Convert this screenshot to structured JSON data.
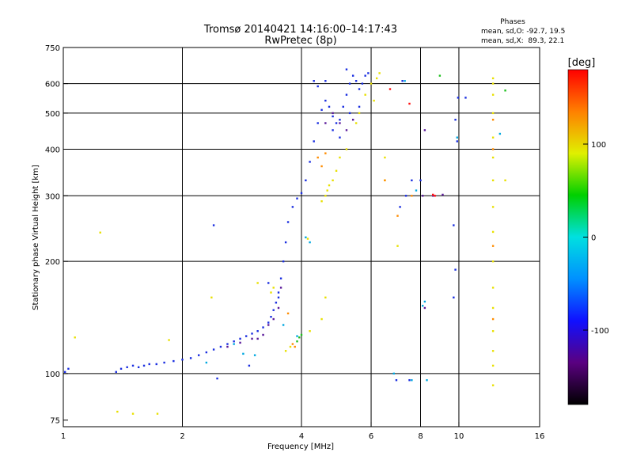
{
  "chart_data": {
    "type": "scatter",
    "title": "Tromsø 20140421 14:16:00–14:17:43",
    "subtitle": "RwPretec (8p)",
    "xlabel": "Frequency [MHz]",
    "ylabel": "Stationary phase Virtual Height [km]",
    "x_scale": "log",
    "y_scale": "log",
    "xlim": [
      1,
      16
    ],
    "ylim": [
      72,
      750
    ],
    "x_ticks": [
      1,
      2,
      4,
      6,
      8,
      10,
      16
    ],
    "y_ticks": [
      75,
      100,
      200,
      300,
      400,
      500,
      600,
      750
    ],
    "x_grid": [
      2,
      4,
      6,
      8,
      10
    ],
    "y_grid": [
      100,
      200,
      300,
      400,
      500,
      600
    ],
    "phase_stats": {
      "heading": "Phases",
      "line1": "mean, sd,O: -92.7, 19.5",
      "line2": "mean, sd,X:  89.3, 22.1"
    },
    "colorbar": {
      "label": "[deg]",
      "range": [
        -180,
        180
      ],
      "ticks": [
        100,
        0,
        -100
      ],
      "colormap": [
        "#000000",
        "#5a0080",
        "#1010ff",
        "#0090ff",
        "#00e0e0",
        "#00d000",
        "#e0f000",
        "#ff8000",
        "#ff0000"
      ]
    },
    "series": [
      {
        "color": "#1a2ee0",
        "points": [
          [
            1.01,
            101
          ],
          [
            1.03,
            103
          ],
          [
            1.36,
            101
          ],
          [
            1.4,
            103
          ],
          [
            1.45,
            104
          ],
          [
            1.5,
            105
          ],
          [
            1.55,
            104
          ],
          [
            1.6,
            105
          ],
          [
            1.65,
            106
          ],
          [
            1.72,
            106
          ],
          [
            1.8,
            107
          ],
          [
            1.9,
            108
          ],
          [
            2.0,
            109
          ],
          [
            2.1,
            110
          ],
          [
            2.2,
            112
          ],
          [
            2.3,
            114
          ],
          [
            2.4,
            116
          ],
          [
            2.5,
            118
          ],
          [
            2.6,
            120
          ],
          [
            2.7,
            122
          ],
          [
            2.8,
            124
          ],
          [
            2.9,
            126
          ],
          [
            3.0,
            128
          ],
          [
            3.1,
            130
          ],
          [
            3.2,
            133
          ],
          [
            3.3,
            137
          ],
          [
            3.35,
            142
          ],
          [
            3.4,
            148
          ],
          [
            3.45,
            155
          ],
          [
            3.5,
            165
          ],
          [
            3.55,
            180
          ],
          [
            3.6,
            200
          ],
          [
            3.65,
            225
          ],
          [
            3.7,
            255
          ],
          [
            3.8,
            280
          ],
          [
            3.9,
            295
          ],
          [
            4.0,
            305
          ],
          [
            4.1,
            330
          ],
          [
            4.2,
            370
          ],
          [
            4.3,
            420
          ],
          [
            4.4,
            470
          ],
          [
            4.5,
            510
          ],
          [
            4.6,
            540
          ],
          [
            4.7,
            520
          ],
          [
            4.8,
            490
          ],
          [
            4.9,
            470
          ],
          [
            5.0,
            480
          ],
          [
            5.1,
            520
          ],
          [
            5.2,
            560
          ],
          [
            5.3,
            600
          ],
          [
            5.4,
            630
          ],
          [
            5.5,
            610
          ],
          [
            5.6,
            580
          ],
          [
            5.7,
            600
          ],
          [
            5.8,
            630
          ],
          [
            5.9,
            640
          ],
          [
            4.8,
            450
          ],
          [
            5.0,
            430
          ],
          [
            5.3,
            500
          ],
          [
            4.4,
            590
          ],
          [
            4.6,
            610
          ],
          [
            5.6,
            520
          ],
          [
            2.45,
            97
          ],
          [
            2.4,
            250
          ],
          [
            2.95,
            105
          ],
          [
            3.3,
            175
          ],
          [
            3.5,
            160
          ],
          [
            4.3,
            610
          ],
          [
            5.2,
            655
          ],
          [
            6.95,
            96
          ],
          [
            7.5,
            96
          ],
          [
            7.1,
            280
          ],
          [
            7.35,
            300
          ],
          [
            8.0,
            330
          ],
          [
            9.8,
            480
          ],
          [
            9.9,
            420
          ],
          [
            9.7,
            250
          ],
          [
            9.8,
            190
          ],
          [
            9.7,
            160
          ],
          [
            7.6,
            330
          ],
          [
            9.95,
            550
          ],
          [
            10.4,
            550
          ],
          [
            7.2,
            610
          ]
        ]
      },
      {
        "color": "#5a1a9a",
        "points": [
          [
            2.6,
            118
          ],
          [
            2.8,
            121
          ],
          [
            3.0,
            124
          ],
          [
            3.1,
            124
          ],
          [
            3.2,
            127
          ],
          [
            3.3,
            135
          ],
          [
            3.4,
            140
          ],
          [
            3.5,
            150
          ],
          [
            3.55,
            170
          ],
          [
            4.6,
            470
          ],
          [
            4.8,
            500
          ],
          [
            5.0,
            470
          ],
          [
            5.2,
            450
          ],
          [
            5.4,
            480
          ],
          [
            8.1,
            300
          ],
          [
            8.2,
            450
          ],
          [
            8.2,
            150
          ],
          [
            9.1,
            302
          ],
          [
            8.6,
            300
          ]
        ]
      },
      {
        "color": "#00a8e0",
        "points": [
          [
            2.7,
            120
          ],
          [
            2.85,
            113
          ],
          [
            3.05,
            112
          ],
          [
            3.6,
            135
          ],
          [
            4.1,
            232
          ],
          [
            4.2,
            225
          ],
          [
            3.9,
            126
          ],
          [
            2.3,
            107
          ],
          [
            9.9,
            430
          ],
          [
            8.1,
            152
          ],
          [
            7.8,
            310
          ],
          [
            8.2,
            156
          ],
          [
            8.3,
            96
          ],
          [
            7.6,
            96
          ],
          [
            6.85,
            100
          ],
          [
            12.7,
            440
          ],
          [
            7.3,
            610
          ]
        ]
      },
      {
        "color": "#20c020",
        "points": [
          [
            3.95,
            125
          ],
          [
            4.0,
            127
          ],
          [
            3.9,
            122
          ],
          [
            8.95,
            630
          ],
          [
            13.1,
            575
          ]
        ]
      },
      {
        "color": "#e8e000",
        "points": [
          [
            1.07,
            125
          ],
          [
            1.24,
            239
          ],
          [
            1.37,
            79
          ],
          [
            1.5,
            78
          ],
          [
            1.73,
            78
          ],
          [
            1.85,
            123
          ],
          [
            2.37,
            160
          ],
          [
            3.1,
            175
          ],
          [
            3.35,
            165
          ],
          [
            3.4,
            170
          ],
          [
            3.65,
            115
          ],
          [
            3.75,
            118
          ],
          [
            4.15,
            230
          ],
          [
            4.5,
            290
          ],
          [
            4.6,
            300
          ],
          [
            4.65,
            310
          ],
          [
            4.7,
            320
          ],
          [
            4.8,
            330
          ],
          [
            4.9,
            350
          ],
          [
            5.0,
            380
          ],
          [
            5.2,
            400
          ],
          [
            5.5,
            470
          ],
          [
            5.6,
            500
          ],
          [
            5.8,
            560
          ],
          [
            6.0,
            600
          ],
          [
            6.2,
            620
          ],
          [
            6.3,
            640
          ],
          [
            6.1,
            540
          ],
          [
            6.5,
            330
          ],
          [
            6.5,
            380
          ],
          [
            4.6,
            160
          ],
          [
            4.5,
            140
          ],
          [
            4.2,
            130
          ],
          [
            12.2,
            620
          ],
          [
            12.2,
            600
          ],
          [
            12.2,
            560
          ],
          [
            12.2,
            500
          ],
          [
            12.2,
            430
          ],
          [
            12.2,
            380
          ],
          [
            12.2,
            330
          ],
          [
            12.2,
            280
          ],
          [
            12.2,
            240
          ],
          [
            12.2,
            200
          ],
          [
            12.2,
            170
          ],
          [
            12.2,
            150
          ],
          [
            12.2,
            130
          ],
          [
            12.2,
            115
          ],
          [
            12.2,
            105
          ],
          [
            12.2,
            93
          ],
          [
            13.1,
            330
          ],
          [
            7.0,
            220
          ]
        ]
      },
      {
        "color": "#ff8c00",
        "points": [
          [
            3.7,
            145
          ],
          [
            3.8,
            120
          ],
          [
            3.85,
            118
          ],
          [
            4.4,
            380
          ],
          [
            4.6,
            390
          ],
          [
            4.5,
            360
          ],
          [
            7.0,
            265
          ],
          [
            7.6,
            300
          ],
          [
            6.5,
            330
          ],
          [
            12.2,
            400
          ],
          [
            12.2,
            480
          ],
          [
            12.2,
            220
          ],
          [
            12.2,
            140
          ]
        ]
      },
      {
        "color": "#ff1010",
        "points": [
          [
            6.7,
            580
          ],
          [
            7.5,
            530
          ],
          [
            8.7,
            300
          ],
          [
            8.6,
            302
          ]
        ]
      }
    ]
  }
}
